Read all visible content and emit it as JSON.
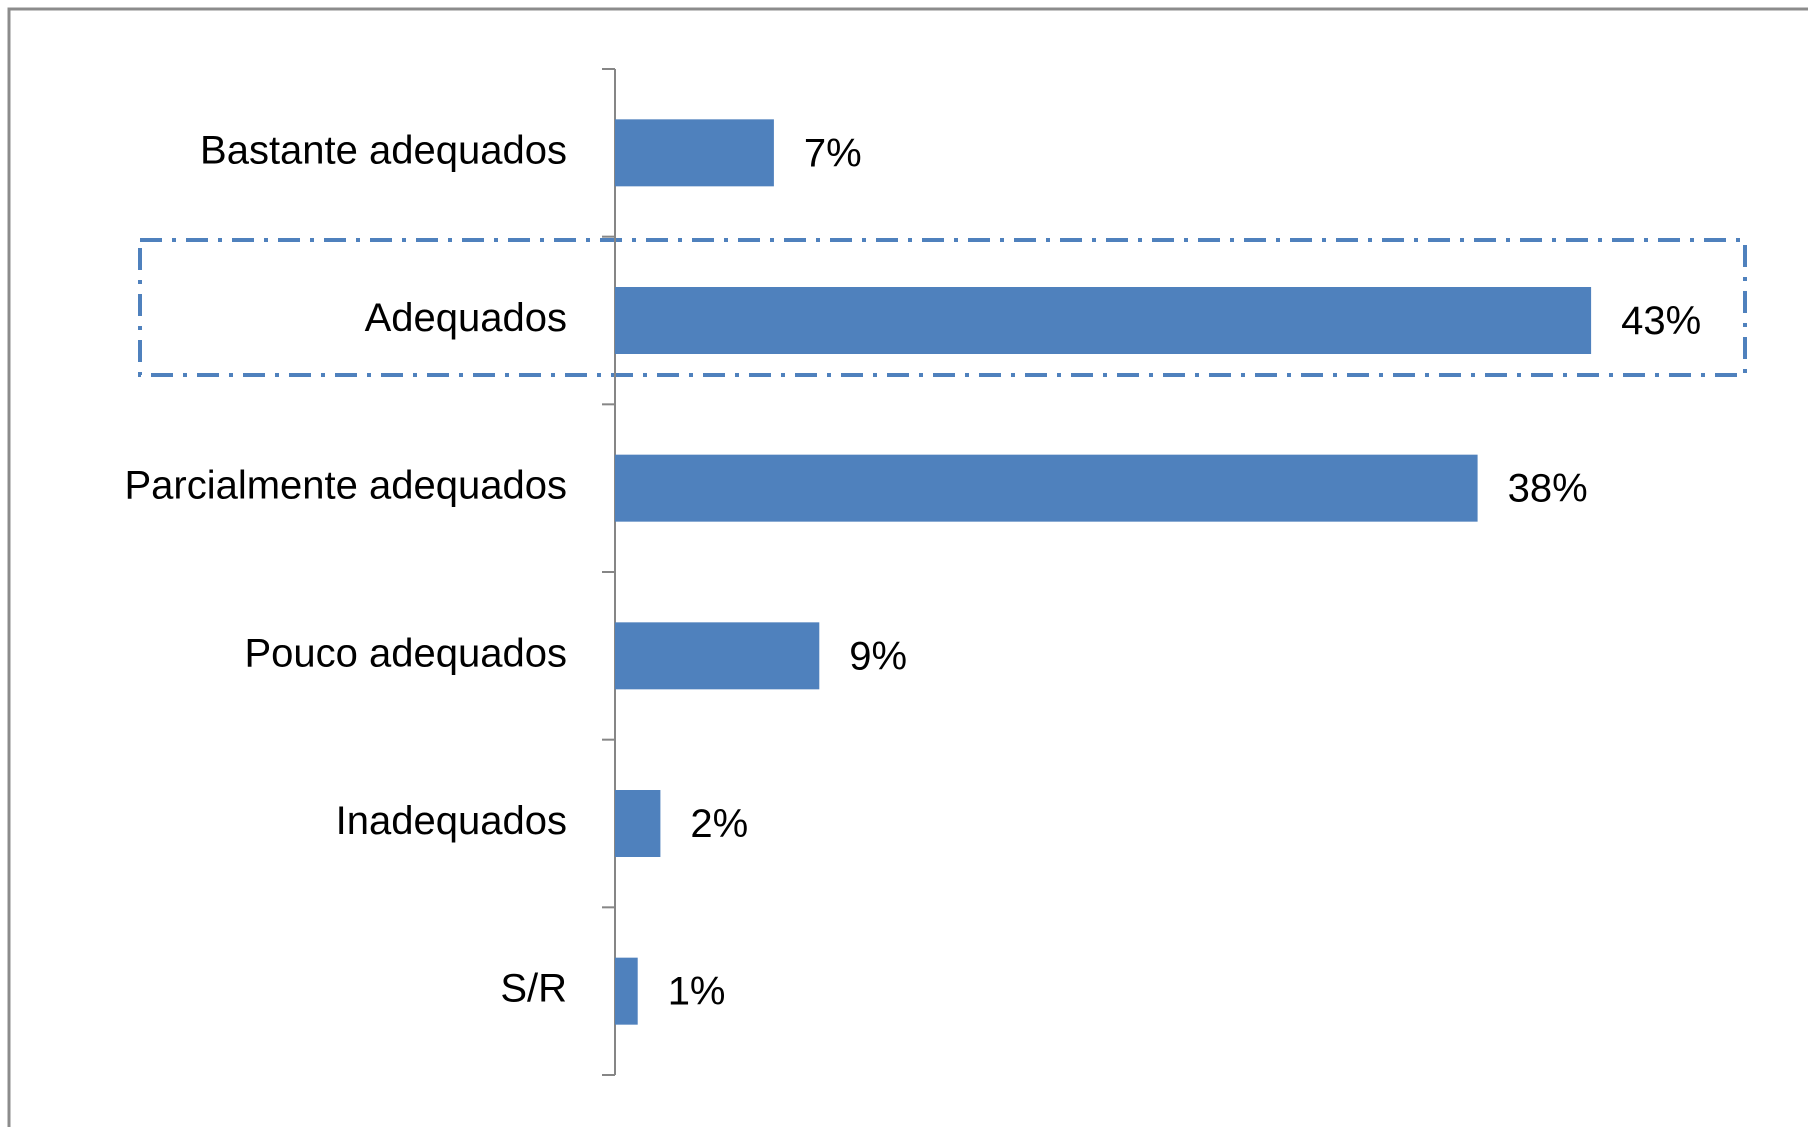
{
  "chart_data": {
    "type": "bar",
    "orientation": "horizontal",
    "categories": [
      "Bastante adequados",
      "Adequados",
      "Parcialmente adequados",
      "Pouco adequados",
      "Inadequados",
      "S/R"
    ],
    "values": [
      7,
      43,
      38,
      9,
      2,
      1
    ],
    "value_labels": [
      "7%",
      "43%",
      "38%",
      "9%",
      "2%",
      "1%"
    ],
    "color": "#4f81bd",
    "xlim": [
      0,
      50
    ]
  }
}
